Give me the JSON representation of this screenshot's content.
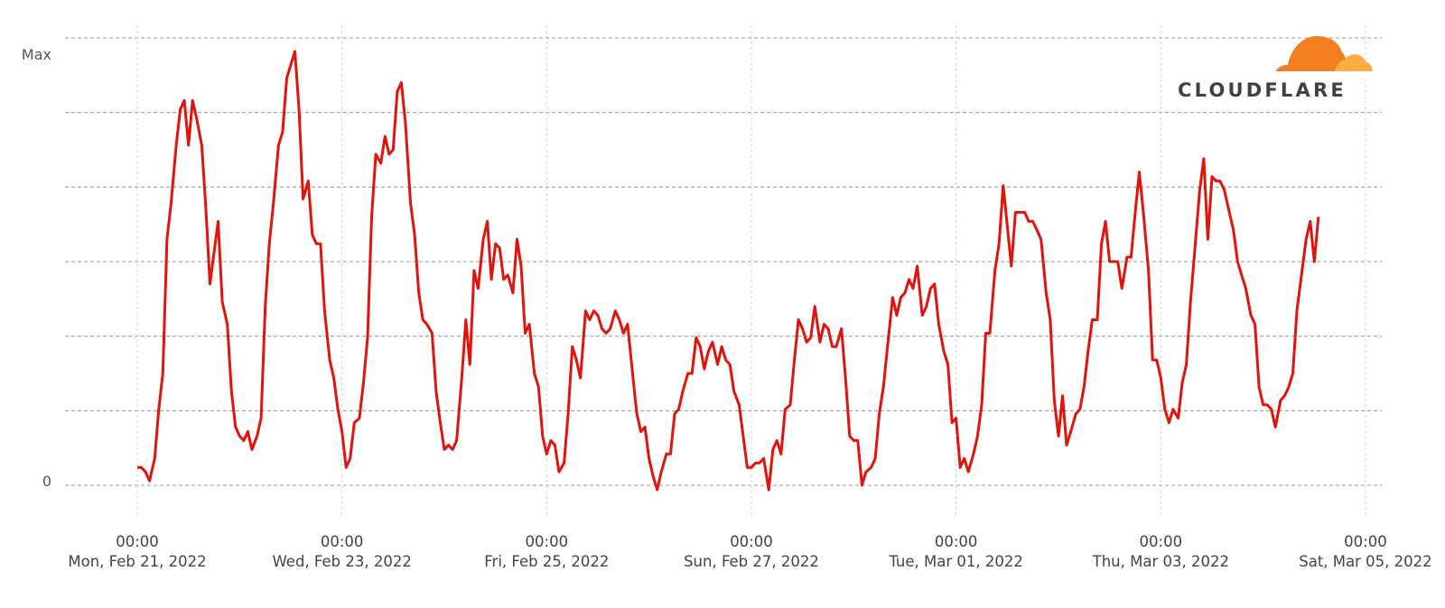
{
  "brand": {
    "name": "CLOUDFLARE",
    "colors": {
      "orange": "#F38020",
      "light_orange": "#FAAE40",
      "text": "#404041"
    }
  },
  "chart_data": {
    "type": "line",
    "title": "",
    "xlabel": "",
    "ylabel": "",
    "y_tick_labels": [
      "0",
      "Max"
    ],
    "ylim": [
      0,
      1
    ],
    "grid": true,
    "line_color": "#E3130B",
    "x_ticks": [
      {
        "time": "00:00",
        "date": "Mon, Feb 21, 2022"
      },
      {
        "time": "00:00",
        "date": "Wed, Feb 23, 2022"
      },
      {
        "time": "00:00",
        "date": "Fri, Feb 25, 2022"
      },
      {
        "time": "00:00",
        "date": "Sun, Feb 27, 2022"
      },
      {
        "time": "00:00",
        "date": "Tue, Mar 01, 2022"
      },
      {
        "time": "00:00",
        "date": "Thu, Mar 03, 2022"
      },
      {
        "time": "00:00",
        "date": "Sat, Mar 05, 2022"
      }
    ],
    "x_range_days": [
      0,
      12
    ],
    "series": [
      {
        "points": [
          [
            0.0,
            0.04
          ],
          [
            0.04,
            0.04
          ],
          [
            0.08,
            0.03
          ],
          [
            0.12,
            0.01
          ],
          [
            0.17,
            0.06
          ],
          [
            0.21,
            0.17
          ],
          [
            0.25,
            0.25
          ],
          [
            0.29,
            0.55
          ],
          [
            0.33,
            0.63
          ],
          [
            0.38,
            0.76
          ],
          [
            0.42,
            0.84
          ],
          [
            0.46,
            0.86
          ],
          [
            0.5,
            0.76
          ],
          [
            0.54,
            0.86
          ],
          [
            0.58,
            0.82
          ],
          [
            0.63,
            0.76
          ],
          [
            0.67,
            0.62
          ],
          [
            0.71,
            0.45
          ],
          [
            0.75,
            0.52
          ],
          [
            0.79,
            0.59
          ],
          [
            0.83,
            0.41
          ],
          [
            0.88,
            0.36
          ],
          [
            0.92,
            0.21
          ],
          [
            0.96,
            0.13
          ],
          [
            1.0,
            0.11
          ],
          [
            1.04,
            0.1
          ],
          [
            1.08,
            0.12
          ],
          [
            1.12,
            0.08
          ],
          [
            1.17,
            0.11
          ],
          [
            1.21,
            0.15
          ],
          [
            1.25,
            0.4
          ],
          [
            1.29,
            0.54
          ],
          [
            1.33,
            0.63
          ],
          [
            1.38,
            0.76
          ],
          [
            1.42,
            0.79
          ],
          [
            1.46,
            0.91
          ],
          [
            1.5,
            0.94
          ],
          [
            1.54,
            0.97
          ],
          [
            1.58,
            0.84
          ],
          [
            1.62,
            0.64
          ],
          [
            1.67,
            0.68
          ],
          [
            1.71,
            0.56
          ],
          [
            1.75,
            0.54
          ],
          [
            1.79,
            0.54
          ],
          [
            1.83,
            0.39
          ],
          [
            1.88,
            0.28
          ],
          [
            1.92,
            0.24
          ],
          [
            1.96,
            0.17
          ],
          [
            2.0,
            0.12
          ],
          [
            2.04,
            0.04
          ],
          [
            2.08,
            0.06
          ],
          [
            2.12,
            0.14
          ],
          [
            2.17,
            0.15
          ],
          [
            2.21,
            0.23
          ],
          [
            2.25,
            0.33
          ],
          [
            2.29,
            0.6
          ],
          [
            2.33,
            0.74
          ],
          [
            2.38,
            0.72
          ],
          [
            2.42,
            0.78
          ],
          [
            2.46,
            0.74
          ],
          [
            2.5,
            0.75
          ],
          [
            2.54,
            0.88
          ],
          [
            2.58,
            0.9
          ],
          [
            2.62,
            0.81
          ],
          [
            2.67,
            0.63
          ],
          [
            2.71,
            0.56
          ],
          [
            2.75,
            0.43
          ],
          [
            2.79,
            0.37
          ],
          [
            2.83,
            0.36
          ],
          [
            2.88,
            0.34
          ],
          [
            2.92,
            0.21
          ],
          [
            2.96,
            0.14
          ],
          [
            3.0,
            0.08
          ],
          [
            3.04,
            0.09
          ],
          [
            3.08,
            0.08
          ],
          [
            3.12,
            0.1
          ],
          [
            3.17,
            0.24
          ],
          [
            3.21,
            0.37
          ],
          [
            3.25,
            0.27
          ],
          [
            3.29,
            0.48
          ],
          [
            3.33,
            0.44
          ],
          [
            3.38,
            0.55
          ],
          [
            3.42,
            0.59
          ],
          [
            3.46,
            0.46
          ],
          [
            3.5,
            0.54
          ],
          [
            3.54,
            0.53
          ],
          [
            3.58,
            0.46
          ],
          [
            3.62,
            0.47
          ],
          [
            3.67,
            0.43
          ],
          [
            3.71,
            0.55
          ],
          [
            3.75,
            0.49
          ],
          [
            3.79,
            0.34
          ],
          [
            3.83,
            0.36
          ],
          [
            3.88,
            0.25
          ],
          [
            3.92,
            0.22
          ],
          [
            3.96,
            0.11
          ],
          [
            4.0,
            0.07
          ],
          [
            4.04,
            0.1
          ],
          [
            4.08,
            0.09
          ],
          [
            4.12,
            0.03
          ],
          [
            4.17,
            0.05
          ],
          [
            4.21,
            0.16
          ],
          [
            4.25,
            0.31
          ],
          [
            4.29,
            0.28
          ],
          [
            4.33,
            0.24
          ],
          [
            4.38,
            0.39
          ],
          [
            4.42,
            0.37
          ],
          [
            4.46,
            0.39
          ],
          [
            4.5,
            0.38
          ],
          [
            4.54,
            0.35
          ],
          [
            4.58,
            0.34
          ],
          [
            4.62,
            0.35
          ],
          [
            4.67,
            0.39
          ],
          [
            4.71,
            0.37
          ],
          [
            4.75,
            0.34
          ],
          [
            4.79,
            0.36
          ],
          [
            4.83,
            0.27
          ],
          [
            4.88,
            0.16
          ],
          [
            4.92,
            0.12
          ],
          [
            4.96,
            0.13
          ],
          [
            5.0,
            0.06
          ],
          [
            5.04,
            0.02
          ],
          [
            5.08,
            -0.01
          ],
          [
            5.12,
            0.03
          ],
          [
            5.17,
            0.07
          ],
          [
            5.21,
            0.07
          ],
          [
            5.25,
            0.16
          ],
          [
            5.29,
            0.17
          ],
          [
            5.33,
            0.21
          ],
          [
            5.38,
            0.25
          ],
          [
            5.42,
            0.25
          ],
          [
            5.46,
            0.33
          ],
          [
            5.5,
            0.31
          ],
          [
            5.54,
            0.26
          ],
          [
            5.58,
            0.3
          ],
          [
            5.62,
            0.32
          ],
          [
            5.67,
            0.27
          ],
          [
            5.71,
            0.31
          ],
          [
            5.75,
            0.28
          ],
          [
            5.79,
            0.27
          ],
          [
            5.83,
            0.21
          ],
          [
            5.88,
            0.18
          ],
          [
            5.92,
            0.11
          ],
          [
            5.96,
            0.04
          ],
          [
            6.0,
            0.04
          ],
          [
            6.04,
            0.05
          ],
          [
            6.08,
            0.05
          ],
          [
            6.12,
            0.06
          ],
          [
            6.17,
            -0.01
          ],
          [
            6.21,
            0.08
          ],
          [
            6.25,
            0.1
          ],
          [
            6.29,
            0.07
          ],
          [
            6.33,
            0.17
          ],
          [
            6.38,
            0.18
          ],
          [
            6.42,
            0.28
          ],
          [
            6.46,
            0.37
          ],
          [
            6.5,
            0.35
          ],
          [
            6.54,
            0.32
          ],
          [
            6.58,
            0.33
          ],
          [
            6.62,
            0.4
          ],
          [
            6.67,
            0.32
          ],
          [
            6.71,
            0.36
          ],
          [
            6.75,
            0.35
          ],
          [
            6.79,
            0.31
          ],
          [
            6.83,
            0.31
          ],
          [
            6.88,
            0.35
          ],
          [
            6.92,
            0.24
          ],
          [
            6.96,
            0.11
          ],
          [
            7.0,
            0.1
          ],
          [
            7.04,
            0.1
          ],
          [
            7.08,
            0.0
          ],
          [
            7.12,
            0.03
          ],
          [
            7.17,
            0.04
          ],
          [
            7.21,
            0.06
          ],
          [
            7.25,
            0.16
          ],
          [
            7.29,
            0.22
          ],
          [
            7.33,
            0.31
          ],
          [
            7.38,
            0.42
          ],
          [
            7.42,
            0.38
          ],
          [
            7.46,
            0.42
          ],
          [
            7.5,
            0.43
          ],
          [
            7.54,
            0.46
          ],
          [
            7.58,
            0.44
          ],
          [
            7.62,
            0.49
          ],
          [
            7.67,
            0.38
          ],
          [
            7.71,
            0.4
          ],
          [
            7.75,
            0.44
          ],
          [
            7.79,
            0.45
          ],
          [
            7.83,
            0.36
          ],
          [
            7.88,
            0.3
          ],
          [
            7.92,
            0.27
          ],
          [
            7.96,
            0.14
          ],
          [
            8.0,
            0.15
          ],
          [
            8.04,
            0.04
          ],
          [
            8.08,
            0.06
          ],
          [
            8.12,
            0.03
          ],
          [
            8.17,
            0.07
          ],
          [
            8.21,
            0.11
          ],
          [
            8.25,
            0.18
          ],
          [
            8.29,
            0.34
          ],
          [
            8.33,
            0.34
          ],
          [
            8.38,
            0.48
          ],
          [
            8.42,
            0.54
          ],
          [
            8.46,
            0.67
          ],
          [
            8.5,
            0.58
          ],
          [
            8.54,
            0.49
          ],
          [
            8.58,
            0.61
          ],
          [
            8.62,
            0.61
          ],
          [
            8.67,
            0.61
          ],
          [
            8.71,
            0.59
          ],
          [
            8.75,
            0.59
          ],
          [
            8.79,
            0.57
          ],
          [
            8.83,
            0.55
          ],
          [
            8.88,
            0.43
          ],
          [
            8.92,
            0.37
          ],
          [
            8.96,
            0.19
          ],
          [
            9.0,
            0.11
          ],
          [
            9.04,
            0.2
          ],
          [
            9.08,
            0.09
          ],
          [
            9.12,
            0.12
          ],
          [
            9.17,
            0.16
          ],
          [
            9.21,
            0.17
          ],
          [
            9.25,
            0.22
          ],
          [
            9.29,
            0.3
          ],
          [
            9.33,
            0.37
          ],
          [
            9.38,
            0.37
          ],
          [
            9.42,
            0.54
          ],
          [
            9.46,
            0.59
          ],
          [
            9.5,
            0.5
          ],
          [
            9.54,
            0.5
          ],
          [
            9.58,
            0.5
          ],
          [
            9.62,
            0.44
          ],
          [
            9.67,
            0.51
          ],
          [
            9.71,
            0.51
          ],
          [
            9.75,
            0.61
          ],
          [
            9.79,
            0.7
          ],
          [
            9.83,
            0.61
          ],
          [
            9.88,
            0.48
          ],
          [
            9.92,
            0.28
          ],
          [
            9.96,
            0.28
          ],
          [
            10.0,
            0.24
          ],
          [
            10.04,
            0.17
          ],
          [
            10.08,
            0.14
          ],
          [
            10.12,
            0.17
          ],
          [
            10.17,
            0.15
          ],
          [
            10.21,
            0.23
          ],
          [
            10.25,
            0.27
          ],
          [
            10.29,
            0.41
          ],
          [
            10.33,
            0.52
          ],
          [
            10.38,
            0.66
          ],
          [
            10.42,
            0.73
          ],
          [
            10.46,
            0.55
          ],
          [
            10.5,
            0.69
          ],
          [
            10.54,
            0.68
          ],
          [
            10.58,
            0.68
          ],
          [
            10.62,
            0.66
          ],
          [
            10.67,
            0.61
          ],
          [
            10.71,
            0.57
          ],
          [
            10.75,
            0.5
          ],
          [
            10.79,
            0.47
          ],
          [
            10.83,
            0.44
          ],
          [
            10.88,
            0.38
          ],
          [
            10.92,
            0.36
          ],
          [
            10.96,
            0.22
          ],
          [
            11.0,
            0.18
          ],
          [
            11.04,
            0.18
          ],
          [
            11.08,
            0.17
          ],
          [
            11.12,
            0.13
          ],
          [
            11.17,
            0.19
          ],
          [
            11.21,
            0.2
          ],
          [
            11.25,
            0.22
          ],
          [
            11.29,
            0.25
          ],
          [
            11.33,
            0.39
          ],
          [
            11.38,
            0.48
          ],
          [
            11.42,
            0.55
          ],
          [
            11.46,
            0.59
          ],
          [
            11.5,
            0.5
          ],
          [
            11.54,
            0.6
          ]
        ]
      }
    ]
  }
}
